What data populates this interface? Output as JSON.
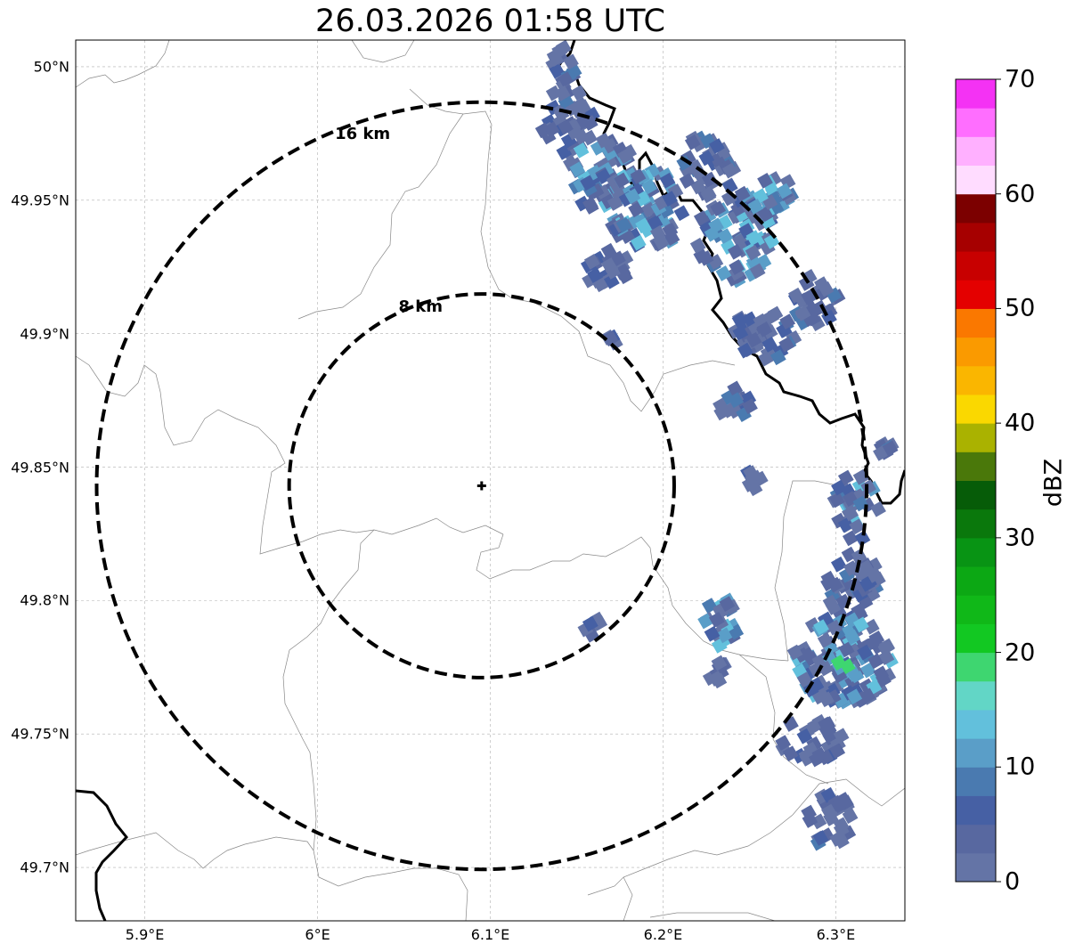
{
  "title": "26.03.2026 01:58 UTC",
  "map": {
    "lon_range": [
      5.86,
      6.34
    ],
    "lat_range": [
      49.68,
      50.01
    ],
    "lat_ticks": [
      {
        "value": 50.0,
        "label": "50°N"
      },
      {
        "value": 49.95,
        "label": "49.95°N"
      },
      {
        "value": 49.9,
        "label": "49.9°N"
      },
      {
        "value": 49.85,
        "label": "49.85°N"
      },
      {
        "value": 49.8,
        "label": "49.8°N"
      },
      {
        "value": 49.75,
        "label": "49.75°N"
      },
      {
        "value": 49.7,
        "label": "49.7°N"
      }
    ],
    "lon_ticks": [
      {
        "value": 5.9,
        "label": "5.9°E"
      },
      {
        "value": 6.0,
        "label": "6°E"
      },
      {
        "value": 6.1,
        "label": "6.1°E"
      },
      {
        "value": 6.2,
        "label": "6.2°E"
      },
      {
        "value": 6.3,
        "label": "6.3°E"
      }
    ],
    "radar_site": {
      "lon": 6.095,
      "lat": 49.843
    },
    "range_rings": [
      {
        "radius_km": 8,
        "label": "8 km"
      },
      {
        "radius_km": 16,
        "label": "16 km"
      }
    ]
  },
  "colorbar": {
    "label": "dBZ",
    "min": 0,
    "max": 70,
    "step": 2.5,
    "tick_labels": [
      "0",
      "10",
      "20",
      "30",
      "40",
      "50",
      "60",
      "70"
    ],
    "colors": [
      "#6474a6",
      "#5868a0",
      "#4660a4",
      "#4a7ab0",
      "#5a9ec8",
      "#62c0dc",
      "#62d6c6",
      "#3ed670",
      "#12c822",
      "#10b818",
      "#0ca814",
      "#089414",
      "#0a780c",
      "#065c08",
      "#4a780a",
      "#aab200",
      "#fad800",
      "#fab600",
      "#fa9a00",
      "#fa7800",
      "#e40000",
      "#c80000",
      "#a60000",
      "#7c0000",
      "#ffdcff",
      "#ffb0ff",
      "#ff6eff",
      "#f432f4"
    ]
  }
}
